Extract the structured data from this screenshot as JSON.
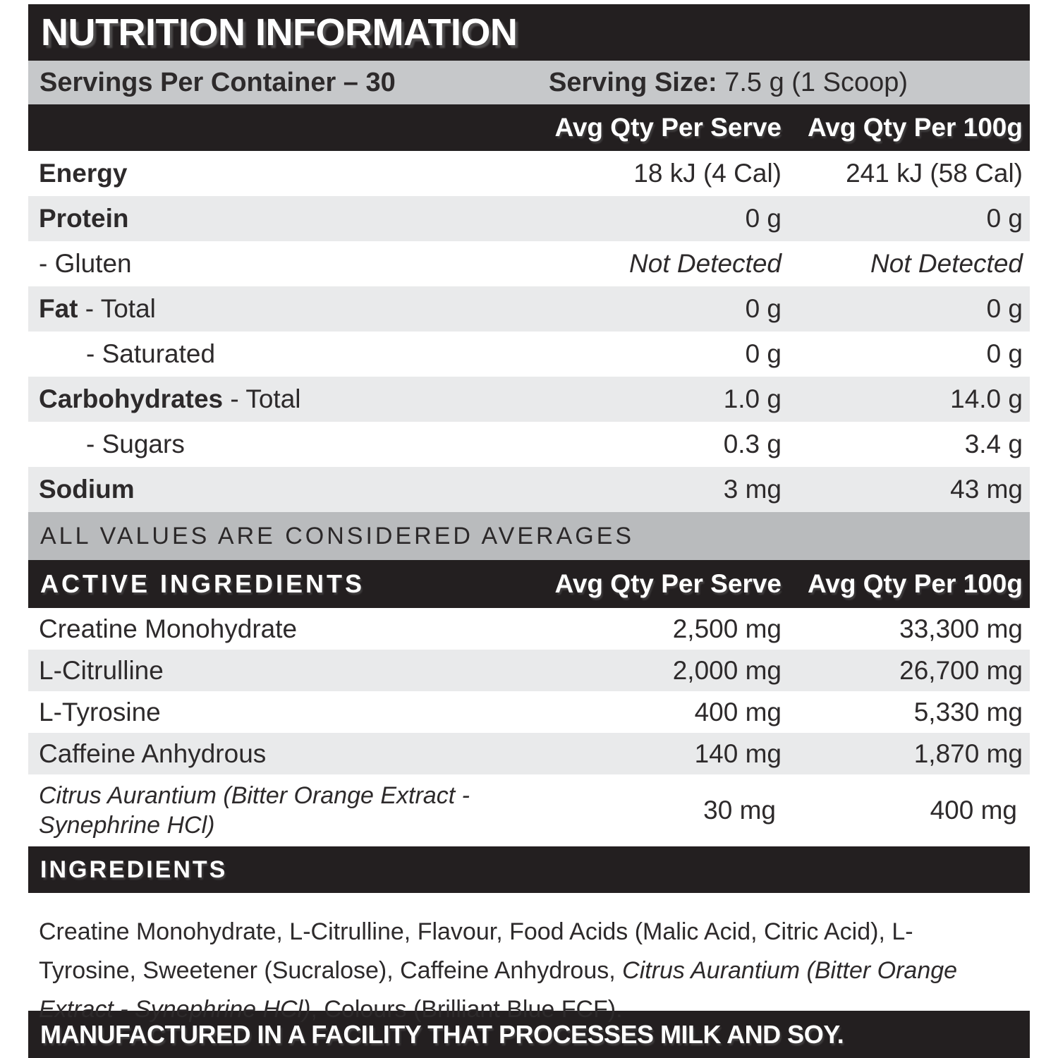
{
  "colors": {
    "bar_black": "#231f20",
    "band_gray": "#c6c8ca",
    "note_gray": "#b9bbbd",
    "row_alt_gray": "#e9eaeb",
    "text_dark": "#2d2a2b",
    "text_white": "#ffffff"
  },
  "header": {
    "title": "NUTRITION INFORMATION"
  },
  "serving_info": {
    "servings_per_container": "Servings Per Container – 30",
    "serving_size_label": "Serving Size:",
    "serving_size_value": " 7.5 g (1 Scoop)"
  },
  "columns": {
    "serve": "Avg Qty Per Serve",
    "per100g": "Avg Qty Per 100g"
  },
  "nutrition_rows": [
    {
      "label_bold": "Energy",
      "label_rest": "",
      "serve": "18 kJ (4 Cal)",
      "per100g": "241 kJ (58 Cal)"
    },
    {
      "label_bold": "Protein",
      "label_rest": "",
      "serve": "0 g",
      "per100g": "0 g"
    },
    {
      "label_bold": "",
      "label_rest": "- Gluten",
      "serve": "Not Detected",
      "per100g": "Not Detected"
    },
    {
      "label_bold": "Fat",
      "label_rest": " - Total",
      "serve": "0 g",
      "per100g": "0 g"
    },
    {
      "label_bold": "",
      "label_rest": "- Saturated",
      "serve": "0 g",
      "per100g": "0 g"
    },
    {
      "label_bold": "Carbohydrates",
      "label_rest": " - Total",
      "serve": "1.0 g",
      "per100g": "14.0 g"
    },
    {
      "label_bold": "",
      "label_rest": "- Sugars",
      "serve": "0.3 g",
      "per100g": "3.4 g"
    },
    {
      "label_bold": "Sodium",
      "label_rest": "",
      "serve": "3 mg",
      "per100g": "43 mg"
    }
  ],
  "note": "ALL VALUES ARE CONSIDERED AVERAGES",
  "active_ingredients": {
    "title": "ACTIVE INGREDIENTS",
    "rows": [
      {
        "label": "Creatine Monohydrate",
        "serve": "2,500 mg",
        "per100g": "33,300 mg"
      },
      {
        "label": "L-Citrulline",
        "serve": "2,000 mg",
        "per100g": "26,700 mg"
      },
      {
        "label": "L-Tyrosine",
        "serve": "400 mg",
        "per100g": "5,330 mg"
      },
      {
        "label": "Caffeine Anhydrous",
        "serve": "140 mg",
        "per100g": "1,870 mg"
      },
      {
        "label": "Citrus Aurantium (Bitter Orange Extract -\nSynephrine HCl)",
        "serve": "30 mg",
        "per100g": "400 mg"
      }
    ]
  },
  "ingredients": {
    "title": "INGREDIENTS",
    "text_before": "Creatine Monohydrate, L-Citrulline, Flavour, Food Acids (Malic Acid, Citric Acid), L-Tyrosine, Sweetener (Sucralose), Caffeine Anhydrous, ",
    "text_italic": "Citrus Aurantium (Bitter Orange Extract - Synephrine HCl)",
    "text_after": ", Colours (Brilliant Blue FCF)."
  },
  "footer": {
    "text": "MANUFACTURED IN A FACILITY THAT PROCESSES MILK AND SOY."
  }
}
